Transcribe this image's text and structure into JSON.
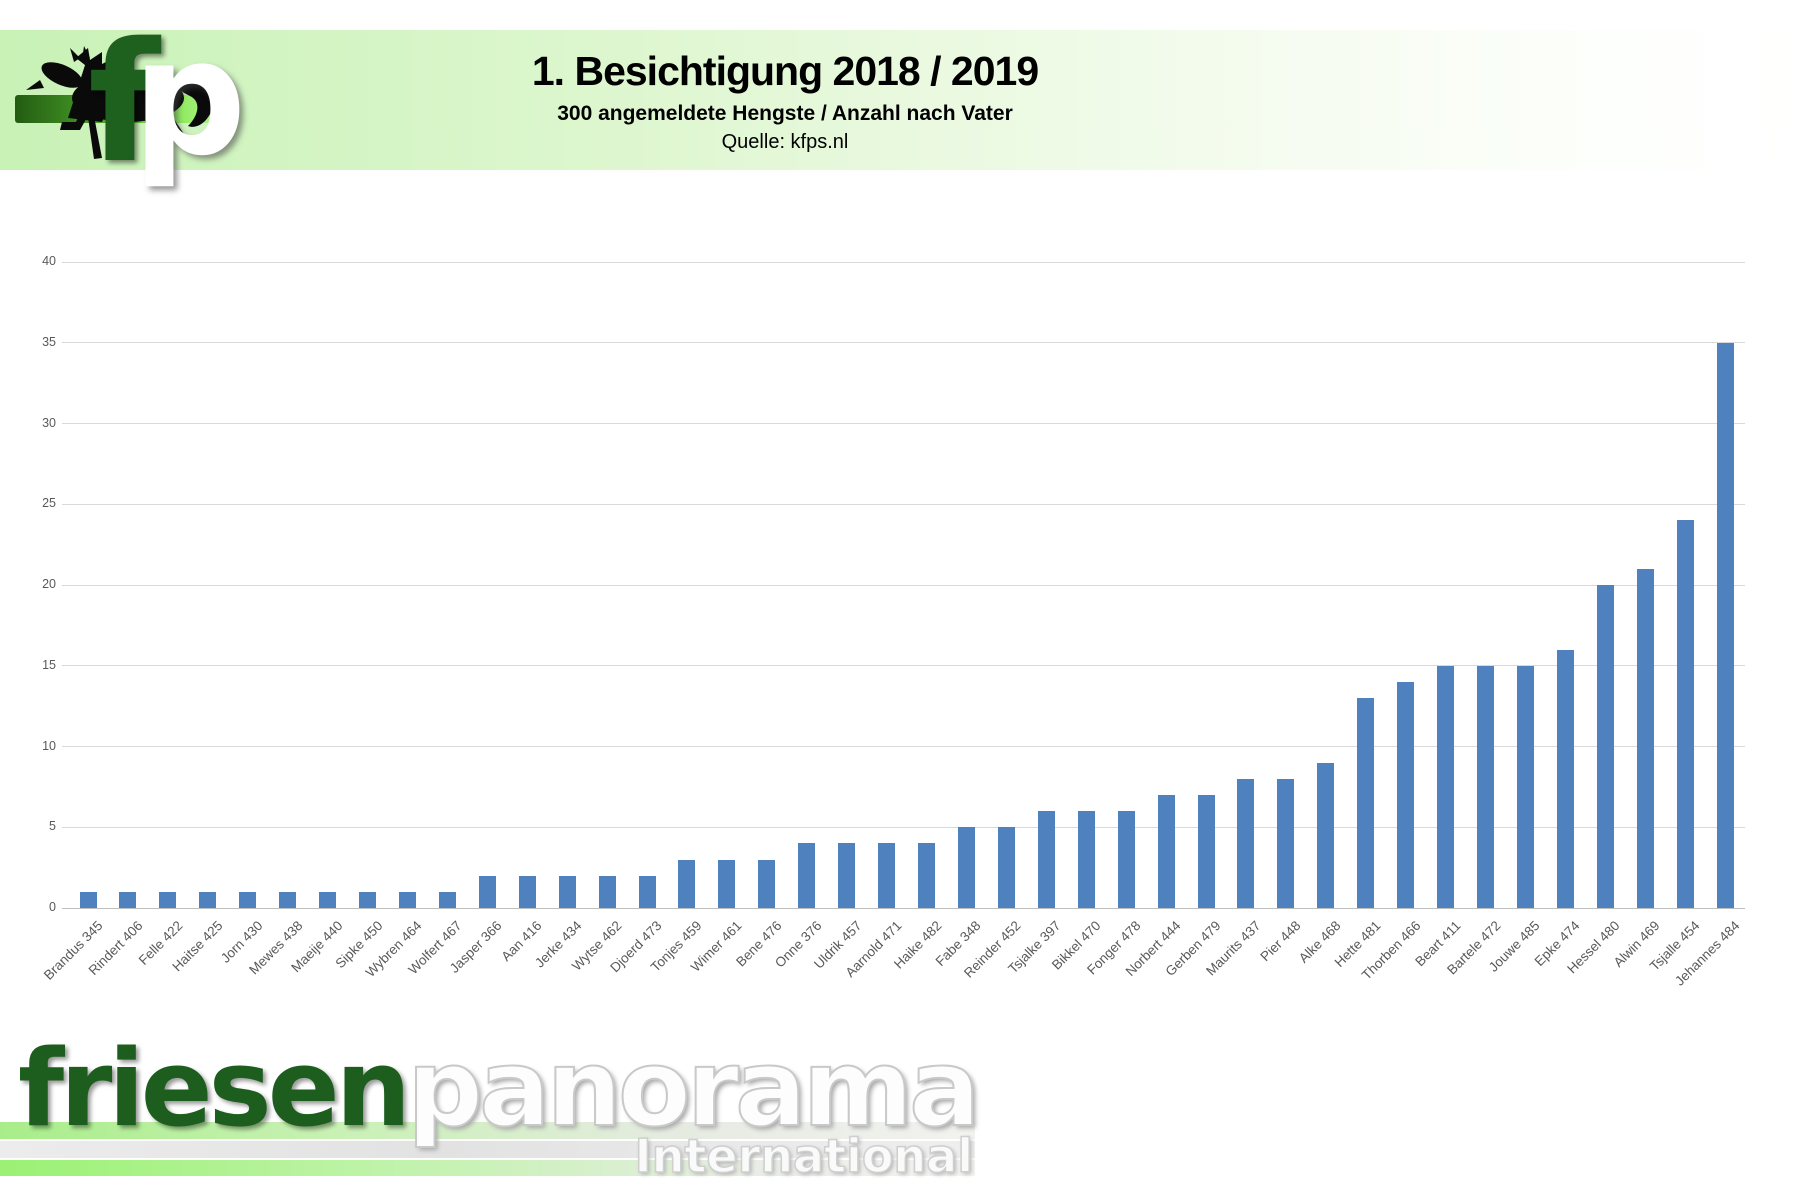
{
  "header": {
    "title": "1. Besichtigung 2018 / 2019",
    "subtitle": "300 angemeldete Hengste / Anzahl nach Vater",
    "source": "Quelle: kfps.nl",
    "logo_f": "f",
    "logo_p": "p"
  },
  "footer": {
    "brand_green": "friesen",
    "brand_gray": "panorama",
    "brand_sub": "International"
  },
  "colors": {
    "bar": "#4e81bd",
    "banner_green": "#c8f2b6",
    "logo_green": "#1e611e",
    "grid": "#d9d9d9",
    "axis_zero_line": "#bfbfbf",
    "axis_text": "#595959"
  },
  "chart_data": {
    "type": "bar",
    "title": "1. Besichtigung 2018 / 2019",
    "subtitle": "300 angemeldete Hengste / Anzahl nach Vater",
    "source": "Quelle: kfps.nl",
    "xlabel": "",
    "ylabel": "",
    "ylim": [
      0,
      40
    ],
    "yticks": [
      0,
      5,
      10,
      15,
      20,
      25,
      30,
      35,
      40
    ],
    "grid": true,
    "legend": false,
    "total": 300,
    "categories": [
      "Brandus 345",
      "Rindert 406",
      "Felle 422",
      "Haitse 425",
      "Jorn 430",
      "Mewes 438",
      "Maeije 440",
      "Sipke 450",
      "Wybren 464",
      "Wolfert 467",
      "Jasper 366",
      "Aan 416",
      "Jerke 434",
      "Wytse 462",
      "Djoerd 473",
      "Tonjes 459",
      "Wimer 461",
      "Bene 476",
      "Onne 376",
      "Uldrik 457",
      "Aarnold 471",
      "Haike 482",
      "Fabe 348",
      "Reinder 452",
      "Tsjalke 397",
      "Bikkel 470",
      "Fonger 478",
      "Norbert 444",
      "Gerben 479",
      "Maurits 437",
      "Pier 448",
      "Alke 468",
      "Hette 481",
      "Thorben 466",
      "Beart 411",
      "Bartele 472",
      "Jouwe 485",
      "Epke 474",
      "Hessel 480",
      "Alwin 469",
      "Tsjalle 454",
      "Jehannes 484"
    ],
    "values": [
      1,
      1,
      1,
      1,
      1,
      1,
      1,
      1,
      1,
      1,
      2,
      2,
      2,
      2,
      2,
      3,
      3,
      3,
      4,
      4,
      4,
      4,
      5,
      5,
      6,
      6,
      6,
      7,
      7,
      8,
      8,
      9,
      13,
      14,
      15,
      15,
      15,
      16,
      20,
      21,
      24,
      35
    ]
  }
}
